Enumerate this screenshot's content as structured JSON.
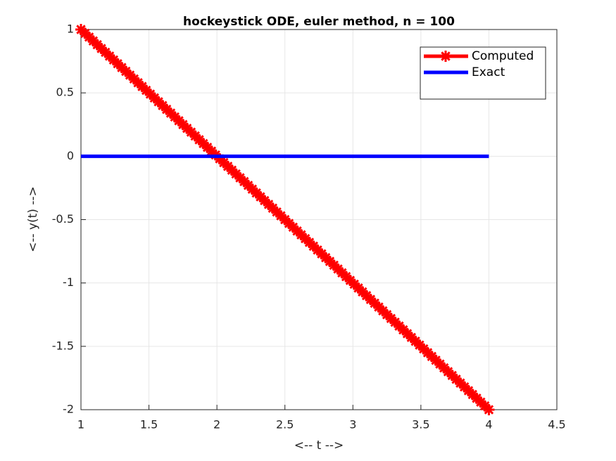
{
  "chart_data": {
    "type": "line",
    "title": "hockeystick ODE, euler method, n = 100",
    "xlabel": "<-- t -->",
    "ylabel": "<-- y(t) -->",
    "xlim": [
      1,
      4.5
    ],
    "ylim": [
      -2,
      1
    ],
    "xticks": [
      1,
      1.5,
      2,
      2.5,
      3,
      3.5,
      4,
      4.5
    ],
    "yticks": [
      -2,
      -1.5,
      -1,
      -0.5,
      0,
      0.5,
      1
    ],
    "grid": true,
    "legend": "northeast",
    "series": [
      {
        "name": "Computed",
        "color": "#ff0000",
        "marker": "asterisk",
        "x": [
          1,
          1.03,
          1.06,
          1.09,
          1.12,
          1.15,
          1.18,
          1.21,
          1.24,
          1.27,
          1.3,
          1.33,
          1.36,
          1.39,
          1.42,
          1.45,
          1.48,
          1.51,
          1.54,
          1.57,
          1.6,
          1.63,
          1.66,
          1.69,
          1.72,
          1.75,
          1.78,
          1.81,
          1.84,
          1.87,
          1.9,
          1.93,
          1.96,
          1.99,
          2.02,
          2.05,
          2.08,
          2.11,
          2.14,
          2.17,
          2.2,
          2.23,
          2.26,
          2.29,
          2.32,
          2.35,
          2.38,
          2.41,
          2.44,
          2.47,
          2.5,
          2.53,
          2.56,
          2.59,
          2.62,
          2.65,
          2.68,
          2.71,
          2.74,
          2.77,
          2.8,
          2.83,
          2.86,
          2.89,
          2.92,
          2.95,
          2.98,
          3.01,
          3.04,
          3.07,
          3.1,
          3.13,
          3.16,
          3.19,
          3.22,
          3.25,
          3.28,
          3.31,
          3.34,
          3.37,
          3.4,
          3.43,
          3.46,
          3.49,
          3.52,
          3.55,
          3.58,
          3.61,
          3.64,
          3.67,
          3.7,
          3.73,
          3.76,
          3.79,
          3.82,
          3.85,
          3.88,
          3.91,
          3.94,
          3.97,
          4
        ],
        "values": [
          1,
          0.97,
          0.94,
          0.91,
          0.88,
          0.85,
          0.82,
          0.79,
          0.76,
          0.73,
          0.7,
          0.67,
          0.64,
          0.61,
          0.58,
          0.55,
          0.52,
          0.49,
          0.46,
          0.43,
          0.4,
          0.37,
          0.34,
          0.31,
          0.28,
          0.25,
          0.22,
          0.19,
          0.16,
          0.13,
          0.1,
          0.07,
          0.04,
          0.01,
          -0.02,
          -0.05,
          -0.08,
          -0.11,
          -0.14,
          -0.17,
          -0.2,
          -0.23,
          -0.26,
          -0.29,
          -0.32,
          -0.35,
          -0.38,
          -0.41,
          -0.44,
          -0.47,
          -0.5,
          -0.53,
          -0.56,
          -0.59,
          -0.62,
          -0.65,
          -0.68,
          -0.71,
          -0.74,
          -0.77,
          -0.8,
          -0.83,
          -0.86,
          -0.89,
          -0.92,
          -0.95,
          -0.98,
          -1.01,
          -1.04,
          -1.07,
          -1.1,
          -1.13,
          -1.16,
          -1.19,
          -1.22,
          -1.25,
          -1.28,
          -1.31,
          -1.34,
          -1.37,
          -1.4,
          -1.43,
          -1.46,
          -1.49,
          -1.52,
          -1.55,
          -1.58,
          -1.61,
          -1.64,
          -1.67,
          -1.7,
          -1.73,
          -1.76,
          -1.79,
          -1.82,
          -1.85,
          -1.88,
          -1.91,
          -1.94,
          -1.97,
          -2
        ]
      },
      {
        "name": "Exact",
        "color": "#0000ff",
        "x": [
          1,
          4
        ],
        "values": [
          0,
          0
        ]
      }
    ]
  }
}
